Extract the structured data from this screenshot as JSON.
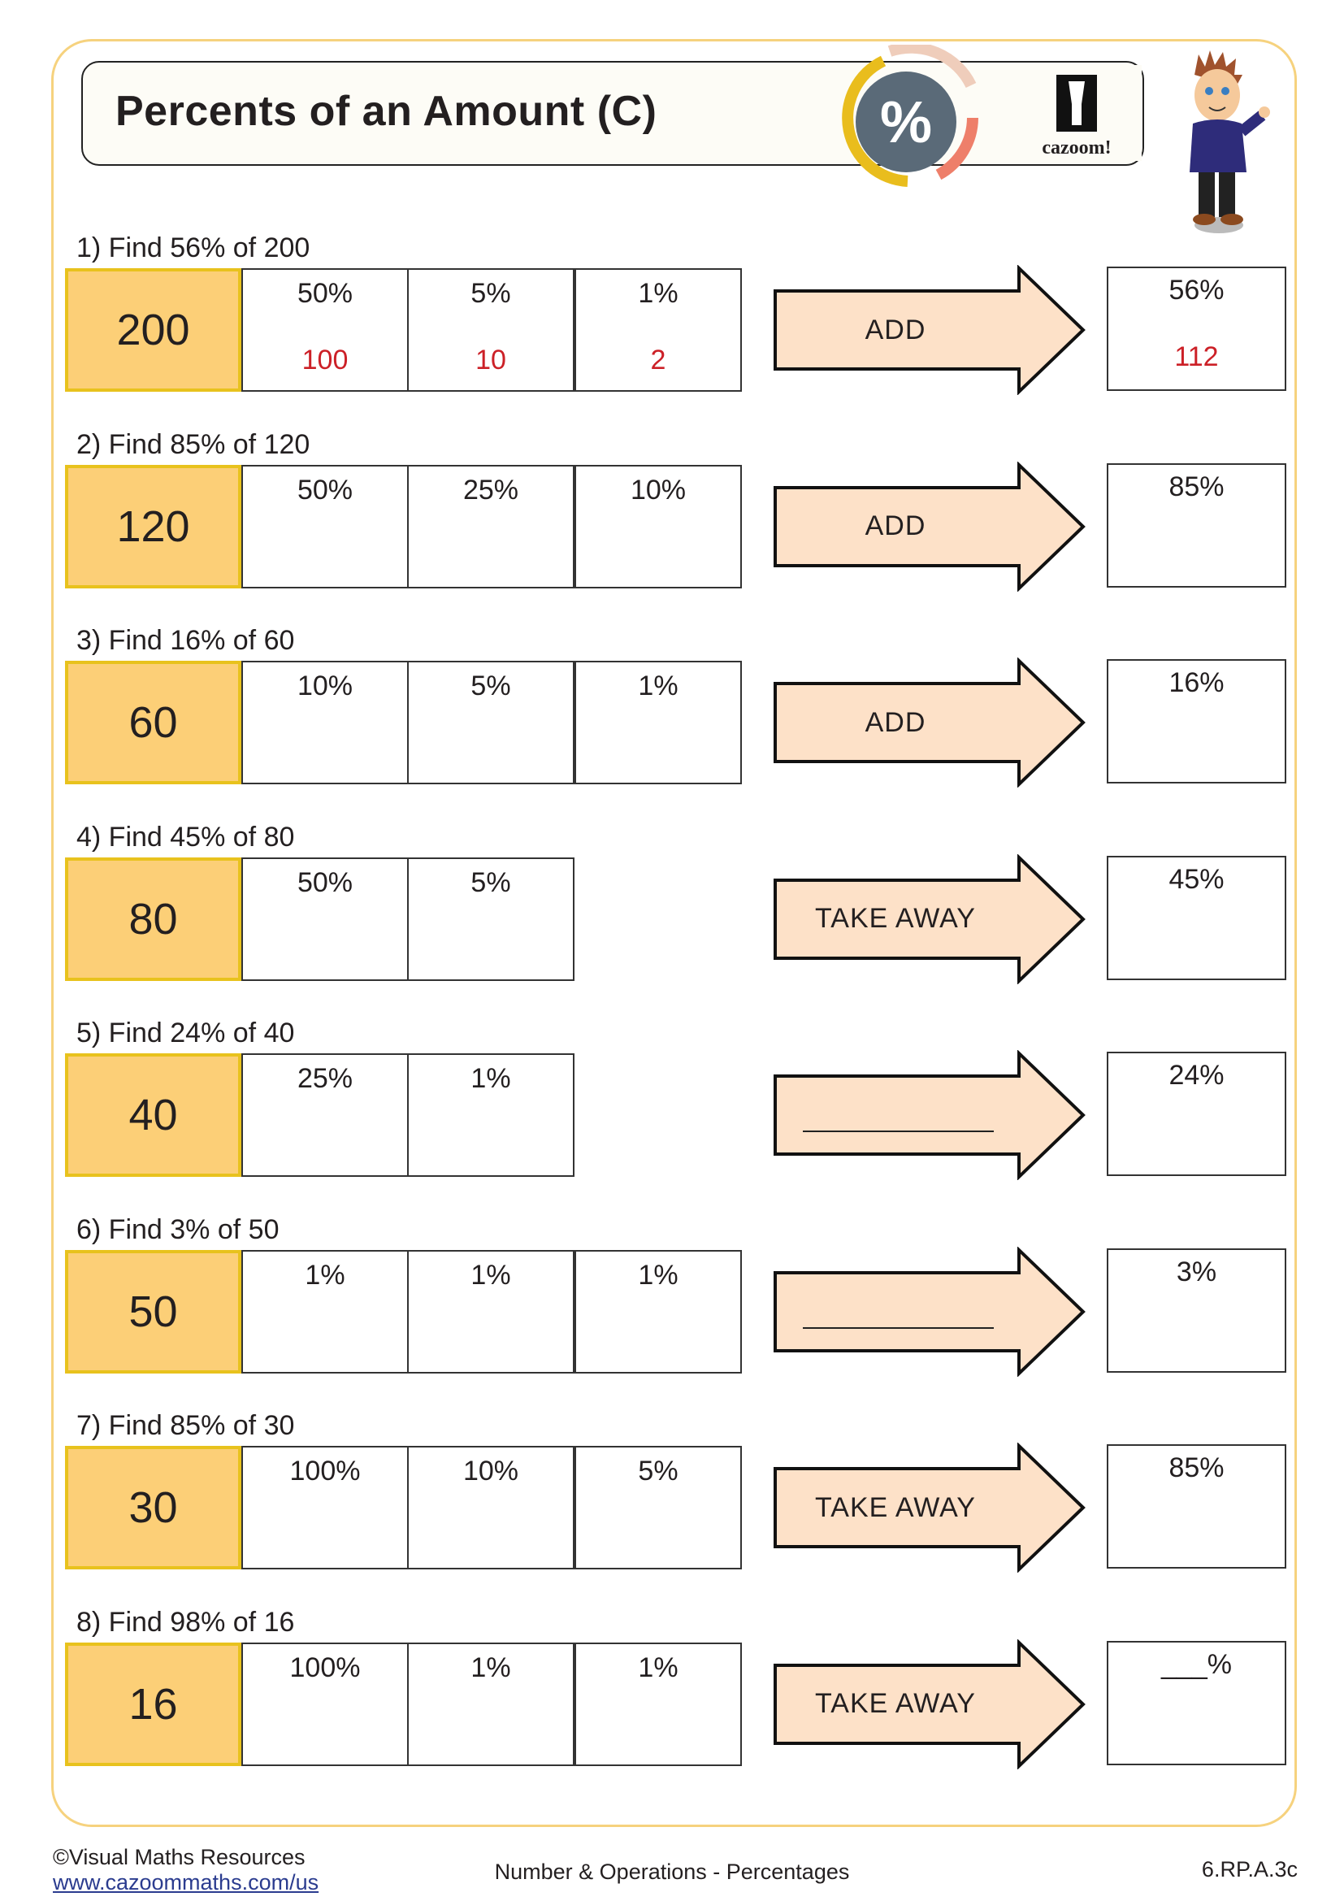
{
  "header": {
    "title": "Percents of an Amount (C)",
    "badge_symbol": "%",
    "logo_text": "cazoom!"
  },
  "colors": {
    "amount_fill": "#fccf77",
    "amount_border": "#e8c21d",
    "arrow_fill": "#fde1c8",
    "answer_red": "#cc2027",
    "frame": "#f6d27e",
    "badge_dark": "#5a6a78",
    "badge_yellow": "#e9bd1d",
    "badge_salmon": "#ee7f6a",
    "badge_peach": "#efcdbb"
  },
  "questions": [
    {
      "label": "1) Find 56% of 200",
      "amount": "200",
      "cells": [
        {
          "pct": "50%",
          "ans": "100"
        },
        {
          "pct": "5%",
          "ans": "10"
        },
        {
          "pct": "1%",
          "ans": "2"
        }
      ],
      "operation": "ADD",
      "result_pct": "56%",
      "result_ans": "112"
    },
    {
      "label": "2) Find 85% of 120",
      "amount": "120",
      "cells": [
        {
          "pct": "50%"
        },
        {
          "pct": "25%"
        },
        {
          "pct": "10%"
        }
      ],
      "operation": "ADD",
      "result_pct": "85%"
    },
    {
      "label": "3) Find 16% of 60",
      "amount": "60",
      "cells": [
        {
          "pct": "10%"
        },
        {
          "pct": "5%"
        },
        {
          "pct": "1%"
        }
      ],
      "operation": "ADD",
      "result_pct": "16%"
    },
    {
      "label": "4) Find 45% of 80",
      "amount": "80",
      "cells": [
        {
          "pct": "50%"
        },
        {
          "pct": "5%"
        }
      ],
      "operation": "TAKE AWAY",
      "result_pct": "45%"
    },
    {
      "label": "5) Find 24% of 40",
      "amount": "40",
      "cells": [
        {
          "pct": "25%"
        },
        {
          "pct": "1%"
        }
      ],
      "operation": "",
      "result_pct": "24%"
    },
    {
      "label": "6) Find 3% of 50",
      "amount": "50",
      "cells": [
        {
          "pct": "1%"
        },
        {
          "pct": "1%"
        },
        {
          "pct": "1%"
        }
      ],
      "operation": "",
      "result_pct": "3%"
    },
    {
      "label": "7) Find 85% of 30",
      "amount": "30",
      "cells": [
        {
          "pct": "100%"
        },
        {
          "pct": "10%"
        },
        {
          "pct": "5%"
        }
      ],
      "operation": "TAKE AWAY",
      "result_pct": "85%"
    },
    {
      "label": "8) Find 98% of 16",
      "amount": "16",
      "cells": [
        {
          "pct": "100%"
        },
        {
          "pct": "1%"
        },
        {
          "pct": "1%"
        }
      ],
      "operation": "TAKE AWAY",
      "result_pct": "___%"
    }
  ],
  "footer": {
    "copyright": "©Visual Maths Resources",
    "link": "www.cazoommaths.com/us",
    "topic": "Number & Operations - Percentages",
    "standard": "6.RP.A.3c"
  }
}
